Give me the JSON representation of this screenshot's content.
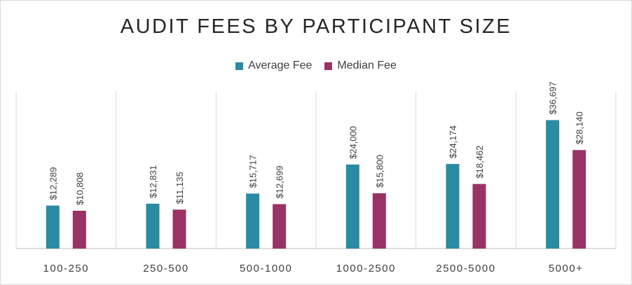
{
  "chart_data": {
    "type": "bar",
    "title": "AUDIT FEES BY PARTICIPANT SIZE",
    "categories": [
      "100-250",
      "250-500",
      "500-1000",
      "1000-2500",
      "2500-5000",
      "5000+"
    ],
    "series": [
      {
        "name": "Average Fee",
        "color": "#2a8ba2",
        "values": [
          12289,
          12831,
          15717,
          24000,
          24174,
          36697
        ],
        "labels": [
          "$12,289",
          "$12,831",
          "$15,717",
          "$24,000",
          "$24,174",
          "$36,697"
        ]
      },
      {
        "name": "Median Fee",
        "color": "#993366",
        "values": [
          10808,
          11135,
          12699,
          15800,
          18462,
          28140
        ],
        "labels": [
          "$10,808",
          "$11,135",
          "$12,699",
          "$15,800",
          "$18,462",
          "$28,140"
        ]
      }
    ],
    "ylim": [
      0,
      40000
    ],
    "grid": false,
    "legend_position": "top"
  }
}
